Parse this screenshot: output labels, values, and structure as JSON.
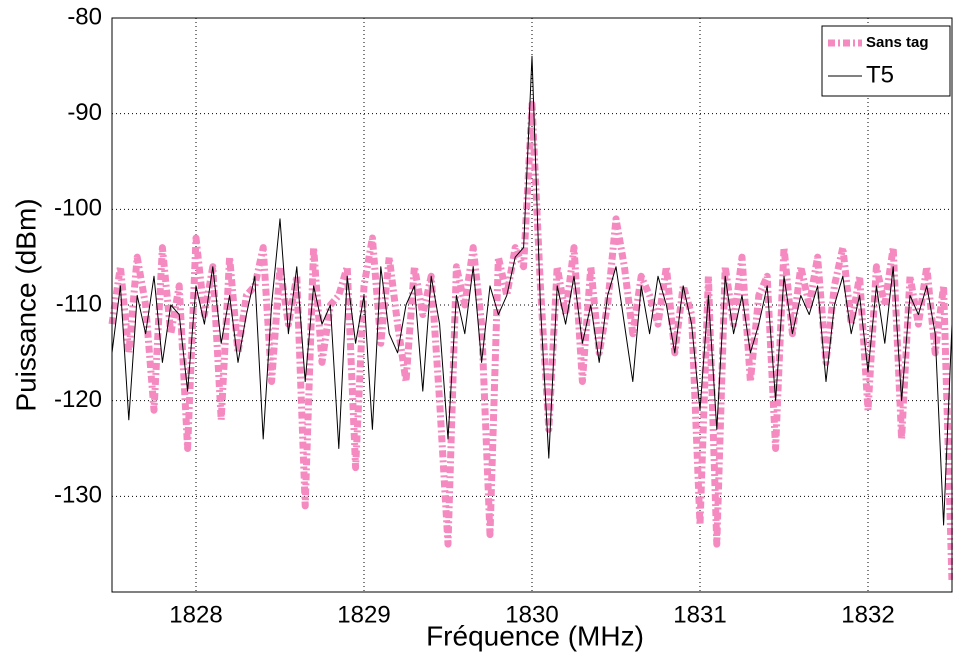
{
  "chart_data": {
    "type": "line",
    "xlabel": "Fréquence (MHz)",
    "ylabel": "Puissance (dBm)",
    "x": [
      1827.5,
      1827.55,
      1827.6,
      1827.65,
      1827.7,
      1827.75,
      1827.8,
      1827.85,
      1827.9,
      1827.95,
      1828,
      1828.05,
      1828.1,
      1828.15,
      1828.2,
      1828.25,
      1828.3,
      1828.35,
      1828.4,
      1828.45,
      1828.5,
      1828.55,
      1828.6,
      1828.65,
      1828.7,
      1828.75,
      1828.8,
      1828.85,
      1828.9,
      1828.95,
      1829,
      1829.05,
      1829.1,
      1829.15,
      1829.2,
      1829.25,
      1829.3,
      1829.35,
      1829.4,
      1829.45,
      1829.5,
      1829.55,
      1829.6,
      1829.65,
      1829.7,
      1829.75,
      1829.8,
      1829.85,
      1829.9,
      1829.95,
      1830,
      1830.05,
      1830.1,
      1830.15,
      1830.2,
      1830.25,
      1830.3,
      1830.35,
      1830.4,
      1830.45,
      1830.5,
      1830.55,
      1830.6,
      1830.65,
      1830.7,
      1830.75,
      1830.8,
      1830.85,
      1830.9,
      1830.95,
      1831,
      1831.05,
      1831.1,
      1831.15,
      1831.2,
      1831.25,
      1831.3,
      1831.35,
      1831.4,
      1831.45,
      1831.5,
      1831.55,
      1831.6,
      1831.65,
      1831.7,
      1831.75,
      1831.8,
      1831.85,
      1831.9,
      1831.95,
      1832,
      1832.05,
      1832.1,
      1832.15,
      1832.2,
      1832.25,
      1832.3,
      1832.35,
      1832.4,
      1832.45,
      1832.5
    ],
    "series": [
      {
        "name": "Sans tag",
        "color": "#f58ac0",
        "values": [
          -112,
          -106,
          -115,
          -105,
          -110,
          -121,
          -104,
          -113,
          -108,
          -125,
          -103,
          -111,
          -106,
          -122,
          -105,
          -115,
          -109,
          -108,
          -104,
          -118,
          -106,
          -112,
          -107,
          -131,
          -104,
          -116,
          -110,
          -109,
          -106,
          -127,
          -108,
          -103,
          -114,
          -105,
          -112,
          -118,
          -106,
          -111,
          -107,
          -120,
          -135,
          -106,
          -110,
          -104,
          -112,
          -134,
          -105,
          -109,
          -104,
          -106,
          -89,
          -108,
          -123,
          -106,
          -111,
          -104,
          -118,
          -106,
          -115,
          -110,
          -101,
          -106,
          -113,
          -107,
          -109,
          -112,
          -106,
          -115,
          -108,
          -111,
          -133,
          -107,
          -135,
          -106,
          -112,
          -105,
          -118,
          -109,
          -107,
          -125,
          -104,
          -113,
          -106,
          -110,
          -105,
          -116,
          -108,
          -104,
          -112,
          -107,
          -121,
          -106,
          -110,
          -104,
          -124,
          -107,
          -112,
          -106,
          -115,
          -108,
          -139
        ]
      },
      {
        "name": "T5",
        "color": "#000000",
        "values": [
          -115,
          -108,
          -122,
          -109,
          -113,
          -107,
          -116,
          -110,
          -111,
          -119,
          -108,
          -112,
          -106,
          -114,
          -109,
          -116,
          -111,
          -107,
          -124,
          -110,
          -101,
          -113,
          -106,
          -118,
          -108,
          -112,
          -110,
          -125,
          -107,
          -114,
          -109,
          -123,
          -106,
          -113,
          -115,
          -110,
          -108,
          -119,
          -107,
          -112,
          -124,
          -109,
          -113,
          -106,
          -116,
          -108,
          -111,
          -109,
          -105,
          -104,
          -84,
          -110,
          -126,
          -108,
          -112,
          -107,
          -114,
          -110,
          -116,
          -109,
          -106,
          -112,
          -118,
          -108,
          -113,
          -107,
          -110,
          -115,
          -108,
          -112,
          -121,
          -109,
          -123,
          -107,
          -113,
          -109,
          -115,
          -112,
          -108,
          -120,
          -107,
          -113,
          -109,
          -111,
          -108,
          -118,
          -110,
          -107,
          -113,
          -109,
          -117,
          -108,
          -114,
          -106,
          -120,
          -109,
          -111,
          -108,
          -113,
          -133,
          -112
        ]
      }
    ],
    "xlim": [
      1827.5,
      1832.5
    ],
    "xticks": [
      1828,
      1829,
      1830,
      1831,
      1832
    ],
    "ylim": [
      -140,
      -80
    ],
    "yticks": [
      -130,
      -120,
      -110,
      -100,
      -90,
      -80
    ],
    "grid": true,
    "legend": "upper right"
  }
}
